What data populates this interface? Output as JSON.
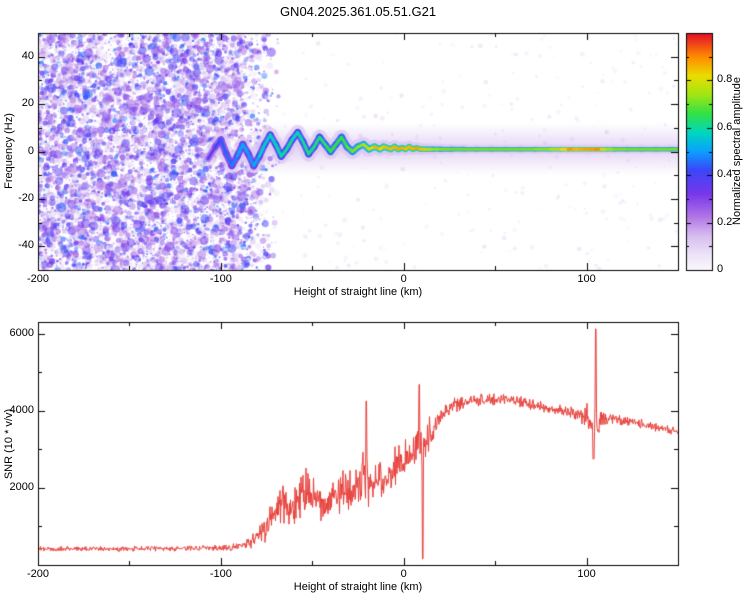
{
  "page": {
    "title": "GN04.2025.361.05.51.G21"
  },
  "chart_data": [
    {
      "type": "heatmap",
      "name": "spectrogram",
      "xlabel": "Height of straight line (km)",
      "ylabel": "Frequency (Hz)",
      "xlim": [
        -200,
        150
      ],
      "ylim": [
        -50,
        50
      ],
      "xticks": [
        -200,
        -100,
        0,
        100
      ],
      "yticks": [
        -40,
        -20,
        0,
        20,
        40
      ],
      "xtick_minor_step": 50,
      "ytick_minor_step": 10,
      "colorbar": {
        "label": "Normalized spectral amplitude",
        "ticks": [
          0,
          0.2,
          0.4,
          0.6,
          0.8
        ],
        "minor_step": 0.1,
        "min": 0,
        "max": 1
      },
      "colormap_stops": [
        [
          0.0,
          250,
          247,
          253
        ],
        [
          0.06,
          238,
          228,
          248
        ],
        [
          0.14,
          216,
          190,
          240
        ],
        [
          0.22,
          178,
          120,
          230
        ],
        [
          0.32,
          120,
          55,
          235
        ],
        [
          0.42,
          60,
          70,
          250
        ],
        [
          0.5,
          10,
          160,
          255
        ],
        [
          0.58,
          0,
          215,
          190
        ],
        [
          0.66,
          50,
          225,
          70
        ],
        [
          0.74,
          160,
          230,
          20
        ],
        [
          0.82,
          235,
          220,
          0
        ],
        [
          0.9,
          255,
          140,
          0
        ],
        [
          1.0,
          228,
          15,
          40
        ]
      ],
      "noise_region": {
        "x_start": -200,
        "x_end": -74,
        "fade_start": -92,
        "max_amplitude": 0.45
      },
      "signal_track": [
        [
          -107,
          -3,
          0.3
        ],
        [
          -103,
          2,
          0.4
        ],
        [
          -100,
          5,
          0.42
        ],
        [
          -97,
          -1,
          0.46
        ],
        [
          -94,
          -6,
          0.44
        ],
        [
          -91,
          -2,
          0.5
        ],
        [
          -88,
          3,
          0.52
        ],
        [
          -85,
          -1,
          0.5
        ],
        [
          -82,
          -6,
          0.48
        ],
        [
          -79,
          -2,
          0.55
        ],
        [
          -76,
          3,
          0.58
        ],
        [
          -73,
          7,
          0.54
        ],
        [
          -70,
          3,
          0.6
        ],
        [
          -67,
          -2,
          0.58
        ],
        [
          -64,
          1,
          0.62
        ],
        [
          -61,
          5,
          0.6
        ],
        [
          -58,
          8,
          0.56
        ],
        [
          -55,
          4,
          0.62
        ],
        [
          -52,
          -1,
          0.6
        ],
        [
          -49,
          2,
          0.65
        ],
        [
          -46,
          6,
          0.6
        ],
        [
          -43,
          3,
          0.66
        ],
        [
          -40,
          0,
          0.64
        ],
        [
          -37,
          3,
          0.68
        ],
        [
          -34,
          6,
          0.63
        ],
        [
          -31,
          2,
          0.68
        ],
        [
          -28,
          0,
          0.7
        ],
        [
          -25,
          2,
          0.72
        ],
        [
          -22,
          3,
          0.74
        ],
        [
          -19,
          1,
          0.78
        ],
        [
          -16,
          2,
          0.82
        ],
        [
          -13,
          1,
          0.9
        ],
        [
          -11,
          2,
          0.74
        ],
        [
          -9,
          1.5,
          0.95
        ],
        [
          -7,
          1,
          0.76
        ],
        [
          -5,
          2,
          0.94
        ],
        [
          -3,
          1,
          0.78
        ],
        [
          -1,
          1.5,
          0.96
        ],
        [
          1,
          1,
          0.76
        ],
        [
          3,
          2,
          0.93
        ],
        [
          5,
          1,
          0.78
        ],
        [
          7,
          1.5,
          0.95
        ],
        [
          9,
          1,
          0.8
        ],
        [
          11,
          1,
          0.9
        ],
        [
          13,
          1,
          0.78
        ],
        [
          16,
          1,
          0.74
        ],
        [
          20,
          1,
          0.72
        ],
        [
          26,
          1,
          0.7
        ],
        [
          33,
          1,
          0.7
        ],
        [
          40,
          1,
          0.7
        ],
        [
          48,
          1,
          0.7
        ],
        [
          56,
          1,
          0.7
        ],
        [
          64,
          1,
          0.7
        ],
        [
          72,
          1,
          0.71
        ],
        [
          80,
          1,
          0.73
        ],
        [
          86,
          1,
          0.78
        ],
        [
          90,
          1,
          0.86
        ],
        [
          93,
          1,
          0.92
        ],
        [
          96,
          1,
          0.78
        ],
        [
          99,
          1,
          0.95
        ],
        [
          102,
          1,
          0.8
        ],
        [
          105,
          1,
          0.96
        ],
        [
          108,
          1,
          0.84
        ],
        [
          111,
          1,
          0.76
        ],
        [
          115,
          1,
          0.72
        ],
        [
          122,
          1,
          0.7
        ],
        [
          130,
          1,
          0.7
        ],
        [
          138,
          1,
          0.7
        ],
        [
          146,
          1,
          0.7
        ],
        [
          150,
          1,
          0.7
        ]
      ]
    },
    {
      "type": "line",
      "name": "snr",
      "xlabel": "Height of straight line (km)",
      "ylabel": "SNR (10 * v/v)",
      "xlim": [
        -200,
        150
      ],
      "ylim": [
        0,
        6300
      ],
      "xticks": [
        -200,
        -100,
        0,
        100
      ],
      "yticks": [
        2000,
        4000,
        6000
      ],
      "xtick_minor_step": 50,
      "ytick_minor_step": 1000,
      "line_color": "#e8413c",
      "envelope": [
        [
          -200,
          420,
          80
        ],
        [
          -150,
          420,
          80
        ],
        [
          -120,
          430,
          80
        ],
        [
          -105,
          440,
          85
        ],
        [
          -95,
          460,
          95
        ],
        [
          -88,
          520,
          130
        ],
        [
          -82,
          650,
          230
        ],
        [
          -76,
          900,
          380
        ],
        [
          -71,
          1250,
          520
        ],
        [
          -66,
          1600,
          640
        ],
        [
          -62,
          1350,
          500
        ],
        [
          -58,
          1750,
          650
        ],
        [
          -53,
          1900,
          680
        ],
        [
          -48,
          1650,
          540
        ],
        [
          -43,
          1350,
          450
        ],
        [
          -38,
          1800,
          600
        ],
        [
          -33,
          2050,
          660
        ],
        [
          -28,
          1850,
          580
        ],
        [
          -24,
          2150,
          720
        ],
        [
          -21,
          2400,
          880
        ],
        [
          -18,
          2050,
          620
        ],
        [
          -14,
          2250,
          640
        ],
        [
          -10,
          2200,
          580
        ],
        [
          -6,
          2450,
          580
        ],
        [
          -2,
          2650,
          560
        ],
        [
          2,
          2800,
          580
        ],
        [
          6,
          3000,
          670
        ],
        [
          9,
          3150,
          880
        ],
        [
          12,
          3200,
          670
        ],
        [
          16,
          3550,
          450
        ],
        [
          20,
          3850,
          330
        ],
        [
          25,
          4050,
          270
        ],
        [
          30,
          4160,
          230
        ],
        [
          36,
          4250,
          200
        ],
        [
          42,
          4300,
          185
        ],
        [
          50,
          4320,
          180
        ],
        [
          58,
          4280,
          170
        ],
        [
          66,
          4200,
          165
        ],
        [
          74,
          4120,
          160
        ],
        [
          82,
          4040,
          155
        ],
        [
          90,
          3960,
          165
        ],
        [
          96,
          3900,
          230
        ],
        [
          100,
          3850,
          340
        ],
        [
          103,
          3650,
          620
        ],
        [
          105,
          3900,
          900
        ],
        [
          107,
          3750,
          430
        ],
        [
          110,
          3820,
          220
        ],
        [
          116,
          3780,
          175
        ],
        [
          124,
          3720,
          160
        ],
        [
          132,
          3640,
          150
        ],
        [
          140,
          3560,
          145
        ],
        [
          150,
          3460,
          140
        ]
      ],
      "spikes": [
        [
          -20.5,
          4250
        ],
        [
          8.5,
          4680
        ],
        [
          105,
          6120
        ]
      ],
      "downspikes": [
        [
          10.5,
          160
        ],
        [
          103.8,
          2750
        ]
      ]
    }
  ]
}
